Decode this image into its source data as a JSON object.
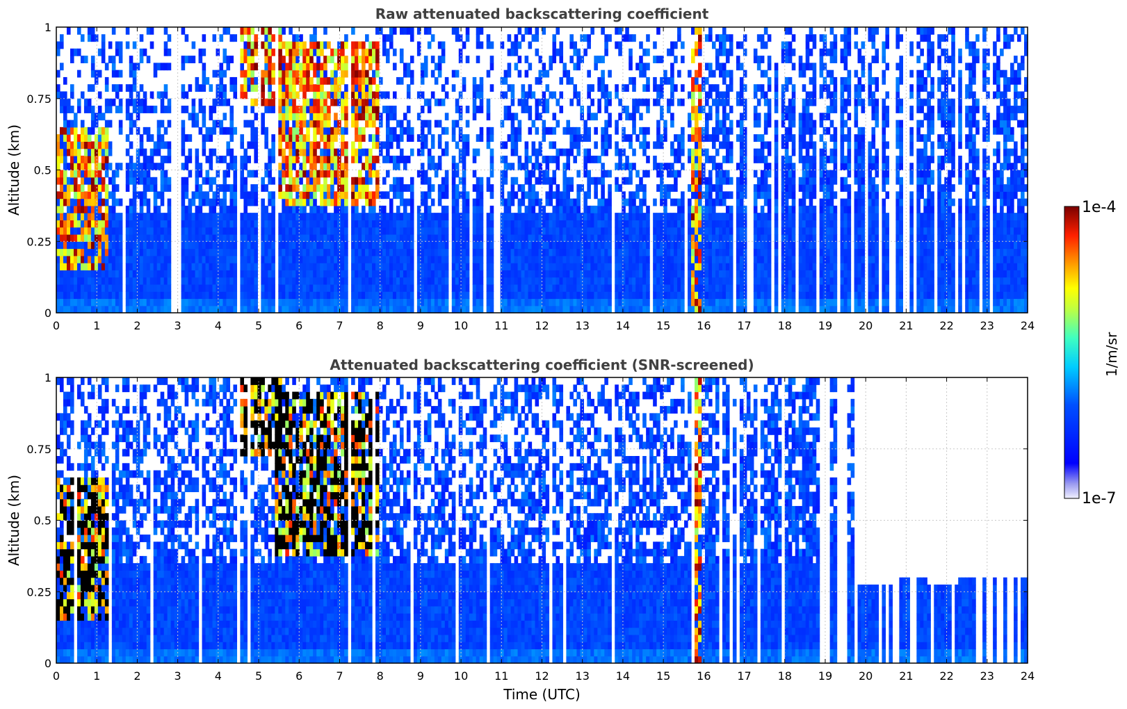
{
  "chart_data": [
    {
      "type": "heatmap",
      "title": "Raw attenuated backscattering coefficient",
      "xlabel": "",
      "ylabel": "Altitude (km)",
      "xlim": [
        0,
        24
      ],
      "ylim": [
        0,
        1
      ],
      "xticks": [
        "0",
        "1",
        "2",
        "3",
        "4",
        "5",
        "6",
        "7",
        "8",
        "9",
        "10",
        "11",
        "12",
        "13",
        "14",
        "15",
        "16",
        "17",
        "18",
        "19",
        "20",
        "21",
        "22",
        "23",
        "24"
      ],
      "yticks": [
        "0",
        "0.25",
        "0.5",
        "0.75",
        "1"
      ],
      "grid": true,
      "colorscale": "jet",
      "log_scale": true,
      "cloud_features": [
        {
          "x": [
            0,
            1.3
          ],
          "y": [
            0.15,
            0.65
          ],
          "level": "high"
        },
        {
          "x": [
            4.5,
            5.6
          ],
          "y": [
            0.72,
            1.0
          ],
          "level": "high"
        },
        {
          "x": [
            5.4,
            8.0
          ],
          "y": [
            0.38,
            0.95
          ],
          "level": "high"
        },
        {
          "x": [
            15.7,
            15.9
          ],
          "y": [
            0.0,
            1.0
          ],
          "level": "high"
        }
      ],
      "background_boundary_km": 0.35
    },
    {
      "type": "heatmap",
      "title": "Attenuated backscattering coefficient (SNR-screened)",
      "xlabel": "Time (UTC)",
      "ylabel": "Altitude (km)",
      "xlim": [
        0,
        24
      ],
      "ylim": [
        0,
        1
      ],
      "xticks": [
        "0",
        "1",
        "2",
        "3",
        "4",
        "5",
        "6",
        "7",
        "8",
        "9",
        "10",
        "11",
        "12",
        "13",
        "14",
        "15",
        "16",
        "17",
        "18",
        "19",
        "20",
        "21",
        "22",
        "23",
        "24"
      ],
      "yticks": [
        "0",
        "0.25",
        "0.5",
        "0.75",
        "1"
      ],
      "grid": true,
      "colorscale": "jet",
      "log_scale": true,
      "cloud_features": [
        {
          "x": [
            0,
            1.3
          ],
          "y": [
            0.15,
            0.65
          ],
          "level": "saturated"
        },
        {
          "x": [
            4.5,
            5.6
          ],
          "y": [
            0.72,
            1.0
          ],
          "level": "saturated"
        },
        {
          "x": [
            5.4,
            8.0
          ],
          "y": [
            0.38,
            0.95
          ],
          "level": "saturated"
        },
        {
          "x": [
            15.7,
            15.9
          ],
          "y": [
            0.0,
            1.0
          ],
          "level": "high"
        }
      ],
      "screened_top_km": [
        {
          "x": 19.7,
          "y": 0.27
        },
        {
          "x": 20.5,
          "y": 0.28
        },
        {
          "x": 20.8,
          "y": 0.3
        },
        {
          "x": 21.5,
          "y": 0.28
        },
        {
          "x": 22.3,
          "y": 0.31
        },
        {
          "x": 23.8,
          "y": 0.3
        }
      ]
    }
  ],
  "colorbar": {
    "label": "1/m/sr",
    "max_label": "1e-4",
    "min_label": "1e-7"
  }
}
